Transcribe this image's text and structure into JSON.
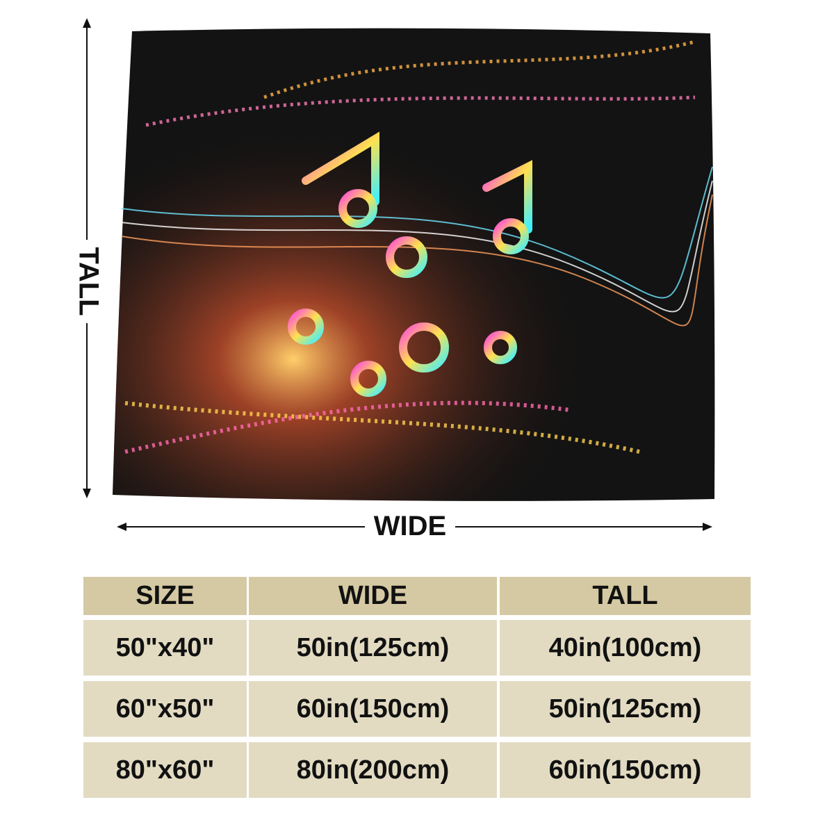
{
  "labels": {
    "tall": "TALL",
    "wide": "WIDE"
  },
  "table": {
    "header": [
      "SIZE",
      "WIDE",
      "TALL"
    ],
    "rows": [
      [
        "50\"x40\"",
        "50in(125cm)",
        "40in(100cm)"
      ],
      [
        "60\"x50\"",
        "60in(150cm)",
        "50in(125cm)"
      ],
      [
        "80\"x60\"",
        "80in(200cm)",
        "60in(150cm)"
      ]
    ]
  }
}
